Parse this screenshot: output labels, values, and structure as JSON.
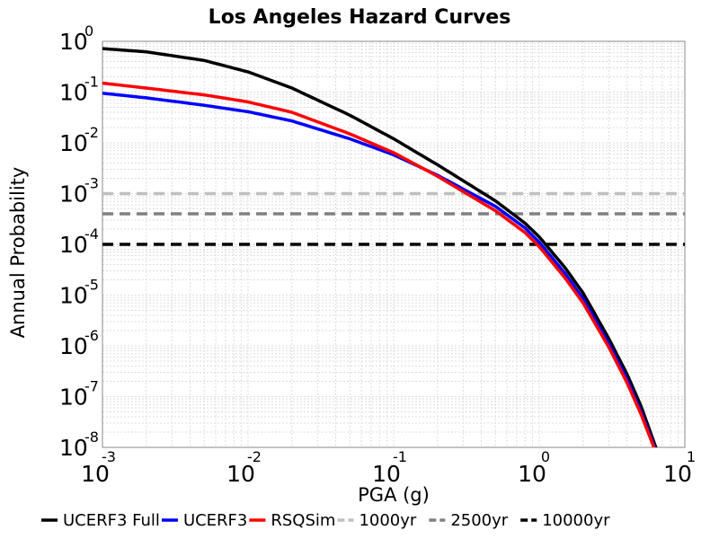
{
  "chart_data": {
    "type": "line",
    "title": "Los Angeles Hazard Curves",
    "xlabel": "PGA (g)",
    "ylabel": "Annual Probability",
    "xscale": "log",
    "yscale": "log",
    "xlim": [
      0.001,
      10
    ],
    "ylim": [
      1e-08,
      1
    ],
    "grid": true,
    "legend_position": "bottom",
    "x_ticks": [
      {
        "base": "10",
        "exp": "-3"
      },
      {
        "base": "10",
        "exp": "-2"
      },
      {
        "base": "10",
        "exp": "-1"
      },
      {
        "base": "10",
        "exp": "0"
      },
      {
        "base": "10",
        "exp": "1"
      }
    ],
    "y_ticks": [
      {
        "base": "10",
        "exp": "0"
      },
      {
        "base": "10",
        "exp": "-1"
      },
      {
        "base": "10",
        "exp": "-2"
      },
      {
        "base": "10",
        "exp": "-3"
      },
      {
        "base": "10",
        "exp": "-4"
      },
      {
        "base": "10",
        "exp": "-5"
      },
      {
        "base": "10",
        "exp": "-6"
      },
      {
        "base": "10",
        "exp": "-7"
      },
      {
        "base": "10",
        "exp": "-8"
      }
    ],
    "series": [
      {
        "name": "UCERF3 Full",
        "color": "#000000",
        "dashed": false,
        "x": [
          0.001,
          0.002,
          0.005,
          0.01,
          0.02,
          0.05,
          0.1,
          0.2,
          0.5,
          0.8,
          1.0,
          1.5,
          2.0,
          3.0,
          4.0,
          5.0,
          6.5
        ],
        "y": [
          0.72,
          0.62,
          0.42,
          0.25,
          0.12,
          0.035,
          0.012,
          0.0037,
          0.00072,
          0.00026,
          0.00014,
          3.5e-05,
          1.1e-05,
          1.4e-06,
          2.8e-07,
          6.5e-08,
          8e-09
        ]
      },
      {
        "name": "UCERF3",
        "color": "#0000ff",
        "dashed": false,
        "x": [
          0.001,
          0.002,
          0.005,
          0.01,
          0.02,
          0.05,
          0.1,
          0.2,
          0.5,
          0.8,
          1.0,
          1.5,
          2.0,
          3.0,
          4.0,
          5.0,
          6.5
        ],
        "y": [
          0.095,
          0.077,
          0.055,
          0.041,
          0.027,
          0.012,
          0.0058,
          0.0023,
          0.00056,
          0.00021,
          0.00011,
          2.7e-05,
          8.5e-06,
          1.1e-06,
          2.2e-07,
          5e-08,
          7e-09
        ]
      },
      {
        "name": "RSQSim",
        "color": "#ff0000",
        "dashed": false,
        "x": [
          0.001,
          0.002,
          0.005,
          0.01,
          0.02,
          0.05,
          0.1,
          0.2,
          0.5,
          0.8,
          1.0,
          1.5,
          2.0,
          3.0,
          4.0,
          5.0,
          6.5
        ],
        "y": [
          0.15,
          0.12,
          0.088,
          0.064,
          0.04,
          0.015,
          0.0064,
          0.0022,
          0.00046,
          0.00017,
          9e-05,
          2.2e-05,
          7e-06,
          9.5e-07,
          1.9e-07,
          4.5e-08,
          6.5e-09
        ]
      },
      {
        "name": "1000yr",
        "color": "#c0c0c0",
        "dashed": true,
        "x": [
          0.001,
          10
        ],
        "y": [
          0.001,
          0.001
        ]
      },
      {
        "name": "2500yr",
        "color": "#808080",
        "dashed": true,
        "x": [
          0.001,
          10
        ],
        "y": [
          0.0004,
          0.0004
        ]
      },
      {
        "name": "10000yr",
        "color": "#000000",
        "dashed": true,
        "x": [
          0.001,
          10
        ],
        "y": [
          0.0001,
          0.0001
        ]
      }
    ]
  }
}
